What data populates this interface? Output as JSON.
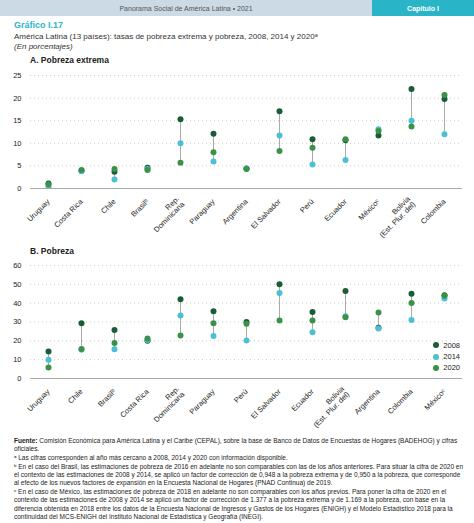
{
  "header": [
    "Panorama Social de América Latina • 2021",
    "Capítulo I"
  ],
  "title": "Gráfico I.17",
  "subtitle": [
    "América Latina (13 países): tasas de pobreza extrema y pobreza, 2008, 2014 y 2020ᵃ",
    "(En porcentajes)"
  ],
  "source": [
    "Fuente:",
    " Comisión Económica para América Latina y el Caribe (CEPAL), sobre la base de Banco de Datos de Encuestas de Hogares (BADEHOG) y cifras oficiales."
  ],
  "notes": [
    "ᵃ Las cifras corresponden al año más cercano a 2008, 2014 y 2020 con información disponible.",
    "ᵇ En el caso del Brasil, las estimaciones de pobreza de 2016 en adelante no son comparables con las de los años anteriores. Para situar la cifra de 2020 en el contexto de las estimaciones de 2008 y 2014, se aplicó un factor de corrección de 0,948 a la pobreza extrema y de 0,950 a la pobreza, que corresponde al efecto de los nuevos factores de expansión en la Encuesta Nacional de Hogares (PNAD Continua) de 2019.",
    "ᶜ En el caso de México, las estimaciones de pobreza de 2018 en adelante no son comparables con los años previos. Para poner la cifra de 2020 en el contexto de las estimaciones de 2008 y 2014 se aplicó un factor de corrección de 1.377 a la pobreza extrema y de 1.169 a la pobreza, con base en la diferencia obtenida en 2018 entre los datos de la Encuesta Nacional de Ingresos y Gastos de los Hogares (ENIGH) y el Modelo Estadístico 2018 para la continuidad del MCS-ENIGH del Instituto Nacional de Estadística y Geografía (INEGI)."
  ],
  "chart_data": [
    {
      "type": "dot",
      "title": "A. Pobreza extrema",
      "categories": [
        "Uruguay",
        "Costa Rica",
        "Chile",
        "Brasilᵇ",
        "Rep.\nDominicana",
        "Paraguay",
        "Argentina",
        "El Salvador",
        "Perú",
        "Ecuador",
        "Méxicoᶜ",
        "Bolivia\n(Est. Plur. del)",
        "Colombia"
      ],
      "series": [
        {
          "name": "2008",
          "color": "#1a5c38",
          "values": [
            1.1,
            3.9,
            3.7,
            4.6,
            15.3,
            12.1,
            4.4,
            17.1,
            10.9,
            10.7,
            11.7,
            22.0,
            19.8
          ]
        },
        {
          "name": "2014",
          "color": "#4bbfd4",
          "values": [
            0.3,
            3.8,
            2.0,
            4.3,
            10.0,
            6.0,
            4.4,
            11.7,
            5.3,
            6.3,
            13.1,
            15.0,
            12.0
          ]
        },
        {
          "name": "2020",
          "color": "#3a9148",
          "values": [
            0.9,
            4.1,
            4.3,
            4.1,
            5.7,
            8.0,
            4.3,
            8.3,
            9.0,
            10.9,
            12.7,
            13.7,
            20.7
          ]
        }
      ],
      "ylim": [
        0,
        25
      ],
      "yticks": [
        0,
        5,
        10,
        15,
        20,
        25
      ],
      "grid": true
    },
    {
      "type": "dot",
      "title": "B. Pobreza",
      "categories": [
        "Uruguay",
        "Chile",
        "Brasilᵇ",
        "Costa Rica",
        "Rep.\nDominicana",
        "Paraguay",
        "Perú",
        "El Salvador",
        "Ecuador",
        "Bolivia\n(Est. Plur. del)",
        "Argentina",
        "Colombia",
        "Méxicoᶜ"
      ],
      "series": [
        {
          "name": "2008",
          "color": "#1a5c38",
          "values": [
            14.4,
            29.4,
            25.8,
            20.1,
            42.1,
            35.7,
            30.0,
            50.0,
            35.3,
            46.5,
            27.0,
            45.0,
            44.2
          ]
        },
        {
          "name": "2014",
          "color": "#4bbfd4",
          "values": [
            10.0,
            15.2,
            15.5,
            20.5,
            33.4,
            22.6,
            20.2,
            45.4,
            24.5,
            33.1,
            26.6,
            31.0,
            42.5
          ]
        },
        {
          "name": "2020",
          "color": "#3a9148",
          "values": [
            5.9,
            15.7,
            18.9,
            21.2,
            22.8,
            29.3,
            29.1,
            30.8,
            30.8,
            32.5,
            35.0,
            40.1,
            43.9
          ]
        }
      ],
      "ylim": [
        0,
        60
      ],
      "yticks": [
        0,
        10,
        20,
        30,
        40,
        50,
        60
      ],
      "grid": true,
      "legend": "lower right"
    }
  ]
}
